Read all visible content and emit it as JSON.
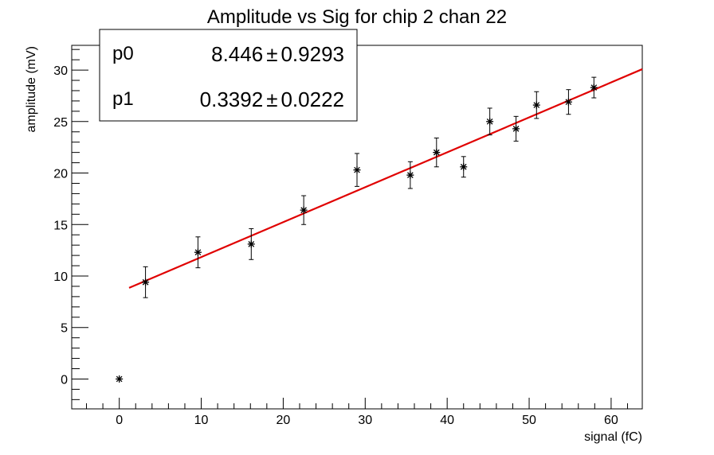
{
  "chart_data": {
    "type": "scatter",
    "title": "Amplitude vs Sig for chip 2 chan 22",
    "xlabel": "signal (fC)",
    "ylabel": "amplitude (mV)",
    "xlim": [
      -5.8,
      63.8
    ],
    "ylim": [
      -2.9,
      32.4
    ],
    "x_ticks": [
      0,
      10,
      20,
      30,
      40,
      50,
      60
    ],
    "y_ticks": [
      0,
      5,
      10,
      15,
      20,
      25,
      30
    ],
    "grid": false,
    "series": [
      {
        "marker": "asterisk",
        "color": "#000000",
        "x": [
          0,
          3.2,
          9.6,
          16.1,
          22.5,
          29.0,
          35.5,
          38.7,
          42.0,
          45.2,
          48.4,
          50.9,
          54.8,
          57.9
        ],
        "y": [
          0.0,
          9.4,
          12.3,
          13.1,
          16.4,
          20.3,
          19.8,
          22.0,
          20.6,
          25.0,
          24.3,
          26.6,
          26.9,
          28.3
        ],
        "y_err": [
          0,
          1.5,
          1.5,
          1.5,
          1.4,
          1.6,
          1.3,
          1.4,
          1.0,
          1.3,
          1.2,
          1.3,
          1.2,
          1.0
        ]
      }
    ],
    "fit": {
      "color": "#e00000",
      "x_range": [
        1.2,
        63.8
      ],
      "p0": 8.446,
      "p1": 0.3392
    },
    "stats_box": {
      "rows": [
        {
          "name": "p0",
          "value": "8.446",
          "pm": "±",
          "error": "0.9293"
        },
        {
          "name": "p1",
          "value": "0.3392",
          "pm": "±",
          "error": "0.0222"
        }
      ]
    }
  }
}
